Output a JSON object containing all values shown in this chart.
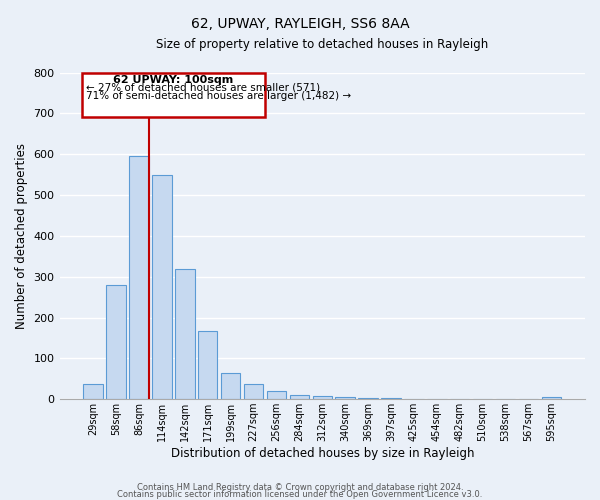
{
  "title": "62, UPWAY, RAYLEIGH, SS6 8AA",
  "subtitle": "Size of property relative to detached houses in Rayleigh",
  "xlabel": "Distribution of detached houses by size in Rayleigh",
  "ylabel": "Number of detached properties",
  "bar_labels": [
    "29sqm",
    "58sqm",
    "86sqm",
    "114sqm",
    "142sqm",
    "171sqm",
    "199sqm",
    "227sqm",
    "256sqm",
    "284sqm",
    "312sqm",
    "340sqm",
    "369sqm",
    "397sqm",
    "425sqm",
    "454sqm",
    "482sqm",
    "510sqm",
    "538sqm",
    "567sqm",
    "595sqm"
  ],
  "bar_values": [
    38,
    280,
    595,
    548,
    320,
    168,
    65,
    38,
    20,
    10,
    8,
    5,
    3,
    2,
    1,
    1,
    1,
    0,
    0,
    0,
    5
  ],
  "bar_color": "#c6d9f0",
  "bar_edge_color": "#5b9bd5",
  "bg_color": "#eaf0f8",
  "grid_color": "#ffffff",
  "ylim": [
    0,
    800
  ],
  "yticks": [
    0,
    100,
    200,
    300,
    400,
    500,
    600,
    700,
    800
  ],
  "vline_color": "#c00000",
  "annotation_line1": "62 UPWAY: 100sqm",
  "annotation_line2": "← 27% of detached houses are smaller (571)",
  "annotation_line3": "71% of semi-detached houses are larger (1,482) →",
  "annotation_box_color": "#c00000",
  "footer_line1": "Contains HM Land Registry data © Crown copyright and database right 2024.",
  "footer_line2": "Contains public sector information licensed under the Open Government Licence v3.0."
}
